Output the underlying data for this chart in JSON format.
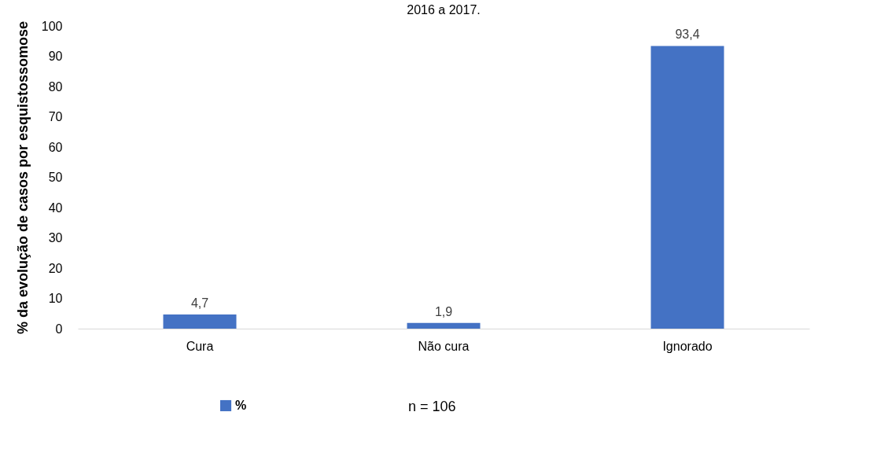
{
  "chart_data": {
    "type": "bar",
    "title": "2016 a 2017.",
    "ylabel": "% da evolução de casos por esquistossomose",
    "categories": [
      "Cura",
      "Não cura",
      "Ignorado"
    ],
    "series": [
      {
        "name": "%",
        "color": "#4472c4",
        "values": [
          4.7,
          1.9,
          93.4
        ]
      }
    ],
    "value_labels": [
      "4,7",
      "1,9",
      "93,4"
    ],
    "ylim": [
      0,
      100
    ],
    "yticks": [
      0,
      10,
      20,
      30,
      40,
      50,
      60,
      70,
      80,
      90,
      100
    ],
    "grid": false,
    "legend": "bottom",
    "annotations": [
      "n = 106"
    ]
  }
}
